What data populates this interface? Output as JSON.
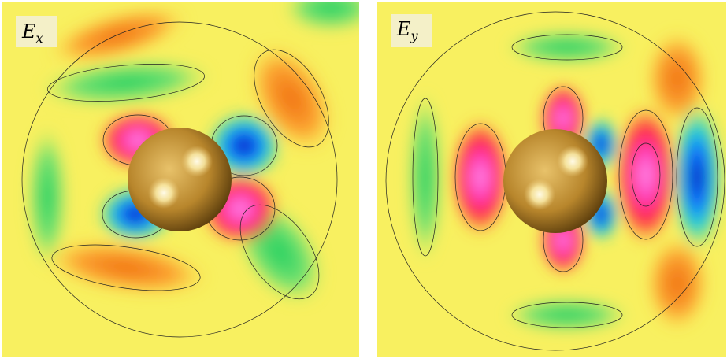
{
  "panels": [
    {
      "label": "E",
      "subscript": "x"
    },
    {
      "label": "E",
      "subscript": "y"
    }
  ]
}
